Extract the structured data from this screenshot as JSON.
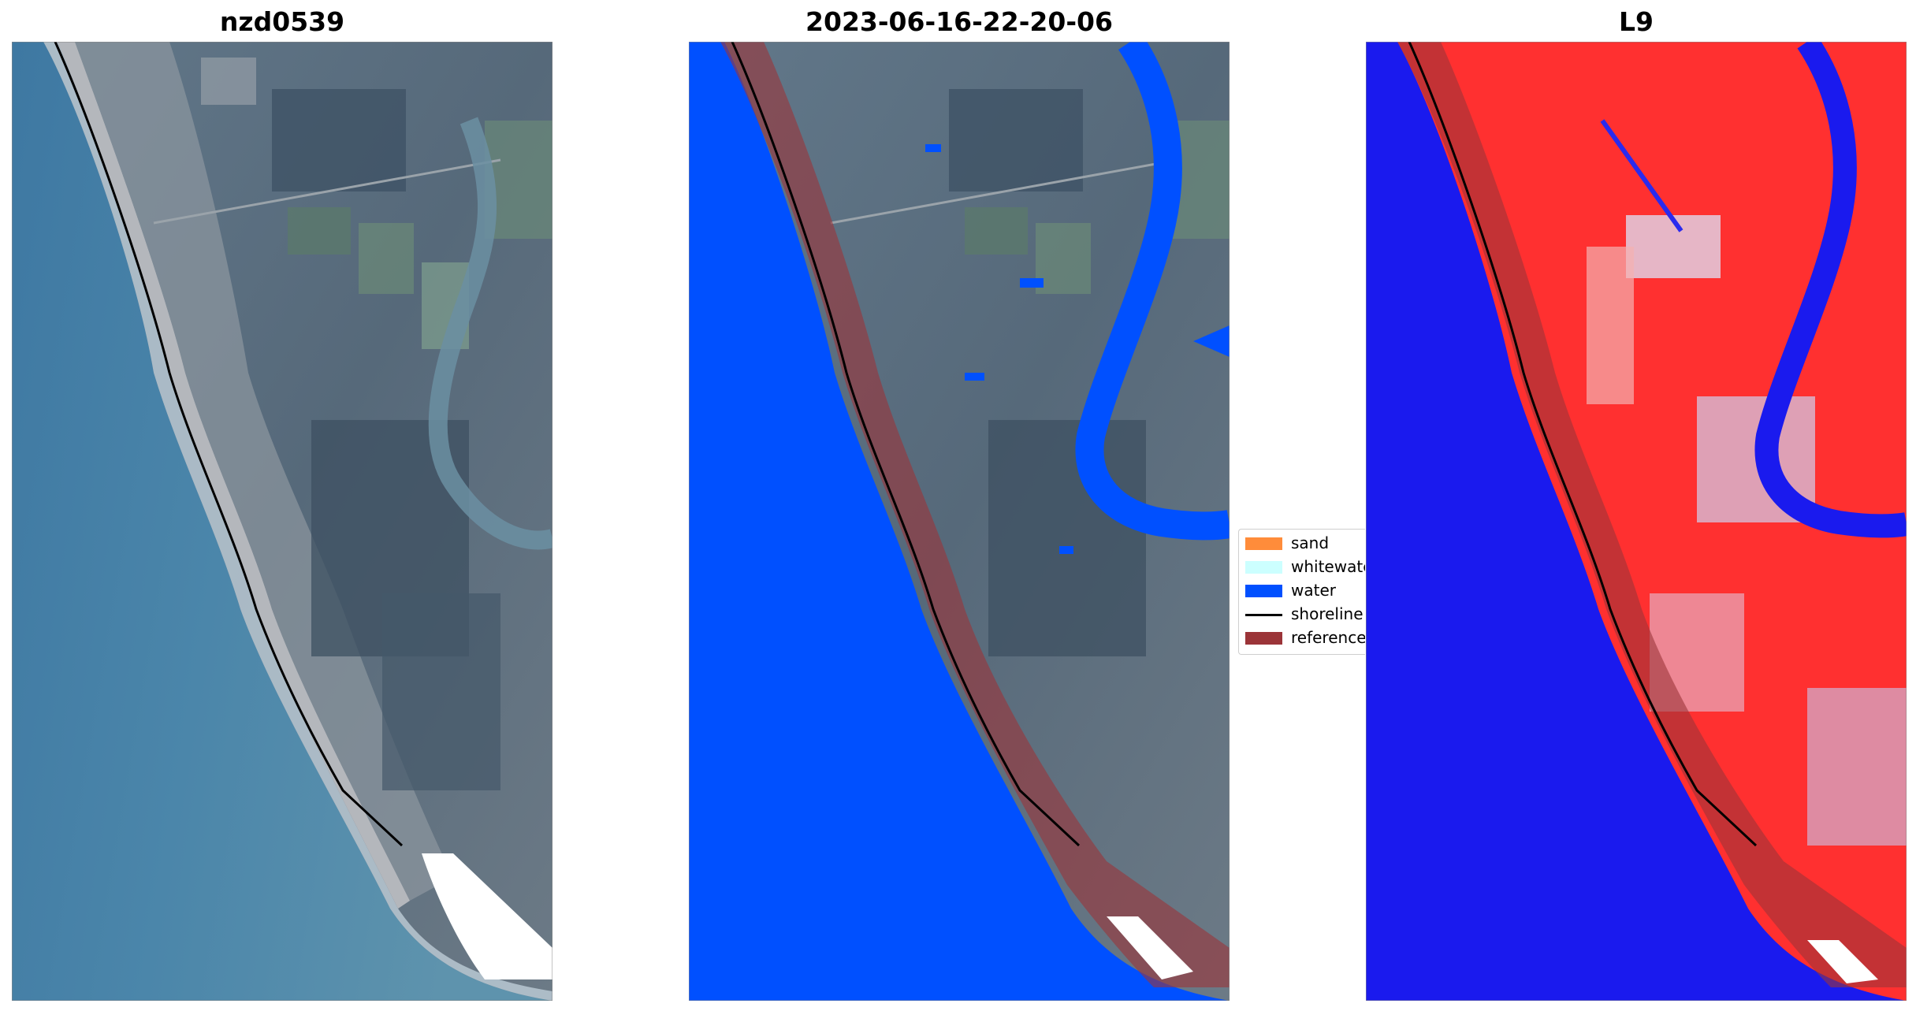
{
  "panels": [
    {
      "title": "nzd0539"
    },
    {
      "title": "2023-06-16-22-20-06"
    },
    {
      "title": "L9"
    }
  ],
  "legend": {
    "items": [
      {
        "label": "sand",
        "color": "#ff8c3a"
      },
      {
        "label": "whitewater",
        "color": "#ccffff"
      },
      {
        "label": "water",
        "color": "#0050ff"
      },
      {
        "label": "shoreline",
        "color": "#000000"
      },
      {
        "label": "reference shoreline buffer",
        "color": "#9b3438"
      }
    ]
  }
}
